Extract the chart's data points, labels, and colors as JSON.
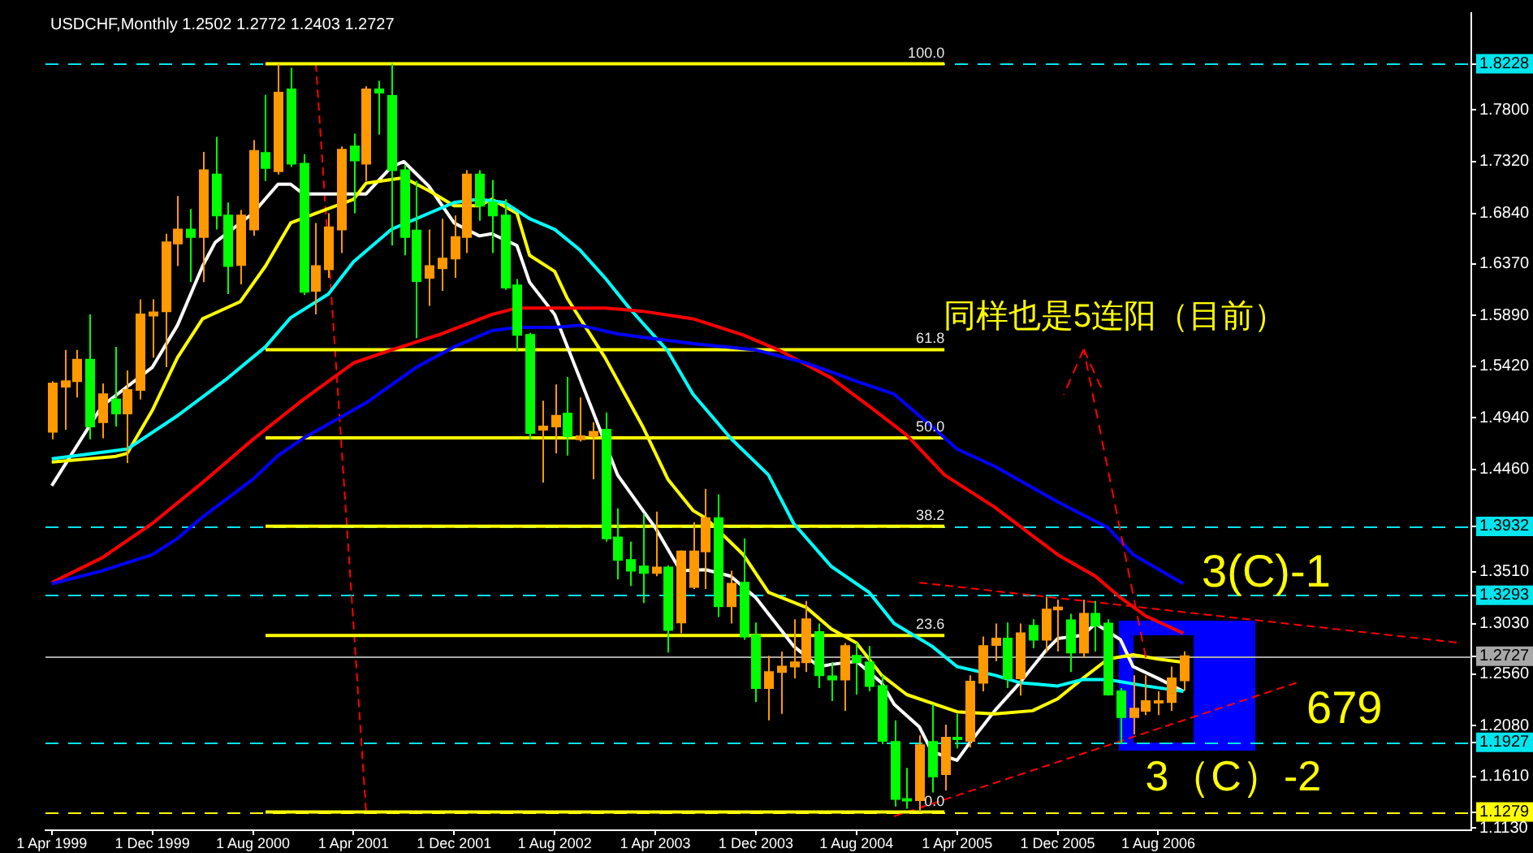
{
  "chart_data": {
    "type": "candlestick",
    "title": "USDCHF,Monthly 1.2502 1.2772 1.2403 1.2727",
    "x": [
      "1999-04",
      "1999-05",
      "1999-06",
      "1999-07",
      "1999-08",
      "1999-09",
      "1999-10",
      "1999-11",
      "1999-12",
      "2000-01",
      "2000-02",
      "2000-03",
      "2000-04",
      "2000-05",
      "2000-06",
      "2000-07",
      "2000-08",
      "2000-09",
      "2000-10",
      "2000-11",
      "2000-12",
      "2001-01",
      "2001-02",
      "2001-03",
      "2001-04",
      "2001-05",
      "2001-06",
      "2001-07",
      "2001-08",
      "2001-09",
      "2001-10",
      "2001-11",
      "2001-12",
      "2002-01",
      "2002-02",
      "2002-03",
      "2002-04",
      "2002-05",
      "2002-06",
      "2002-07",
      "2002-08",
      "2002-09",
      "2002-10",
      "2002-11",
      "2002-12",
      "2003-01",
      "2003-02",
      "2003-03",
      "2003-04",
      "2003-05",
      "2003-06",
      "2003-07",
      "2003-08",
      "2003-09",
      "2003-10",
      "2003-11",
      "2003-12",
      "2004-01",
      "2004-02",
      "2004-03",
      "2004-04",
      "2004-05",
      "2004-06",
      "2004-07",
      "2004-08",
      "2004-09",
      "2004-10",
      "2004-11",
      "2004-12",
      "2005-01",
      "2005-02",
      "2005-03",
      "2005-04",
      "2005-05",
      "2005-06",
      "2005-07",
      "2005-08",
      "2005-09",
      "2005-10",
      "2005-11",
      "2005-12",
      "2006-01",
      "2006-02",
      "2006-03",
      "2006-04",
      "2006-05",
      "2006-06",
      "2006-07",
      "2006-08",
      "2006-09",
      "2006-10"
    ],
    "ohlc": [
      [
        1.481,
        1.528,
        1.474,
        1.526
      ],
      [
        1.523,
        1.557,
        1.483,
        1.528
      ],
      [
        1.528,
        1.557,
        1.513,
        1.548
      ],
      [
        1.548,
        1.59,
        1.474,
        1.486
      ],
      [
        1.49,
        1.526,
        1.475,
        1.516
      ],
      [
        1.511,
        1.56,
        1.486,
        1.498
      ],
      [
        1.498,
        1.538,
        1.452,
        1.52
      ],
      [
        1.52,
        1.604,
        1.511,
        1.59
      ],
      [
        1.589,
        1.604,
        1.55,
        1.592
      ],
      [
        1.593,
        1.665,
        1.541,
        1.657
      ],
      [
        1.656,
        1.7,
        1.635,
        1.669
      ],
      [
        1.669,
        1.688,
        1.62,
        1.662
      ],
      [
        1.662,
        1.741,
        1.62,
        1.724
      ],
      [
        1.72,
        1.755,
        1.669,
        1.682
      ],
      [
        1.682,
        1.694,
        1.609,
        1.635
      ],
      [
        1.636,
        1.687,
        1.618,
        1.682
      ],
      [
        1.669,
        1.752,
        1.663,
        1.742
      ],
      [
        1.74,
        1.794,
        1.714,
        1.726
      ],
      [
        1.723,
        1.823,
        1.72,
        1.796
      ],
      [
        1.799,
        1.819,
        1.727,
        1.73
      ],
      [
        1.73,
        1.739,
        1.608,
        1.611
      ],
      [
        1.612,
        1.675,
        1.59,
        1.635
      ],
      [
        1.632,
        1.684,
        1.624,
        1.671
      ],
      [
        1.669,
        1.746,
        1.647,
        1.743
      ],
      [
        1.746,
        1.758,
        1.684,
        1.733
      ],
      [
        1.73,
        1.802,
        1.714,
        1.799
      ],
      [
        1.799,
        1.807,
        1.757,
        1.796
      ],
      [
        1.793,
        1.823,
        1.654,
        1.724
      ],
      [
        1.724,
        1.729,
        1.645,
        1.662
      ],
      [
        1.668,
        1.714,
        1.568,
        1.621
      ],
      [
        1.624,
        1.669,
        1.598,
        1.635
      ],
      [
        1.633,
        1.679,
        1.612,
        1.642
      ],
      [
        1.642,
        1.682,
        1.624,
        1.662
      ],
      [
        1.662,
        1.724,
        1.647,
        1.72
      ],
      [
        1.72,
        1.724,
        1.677,
        1.691
      ],
      [
        1.694,
        1.715,
        1.647,
        1.682
      ],
      [
        1.682,
        1.697,
        1.613,
        1.615
      ],
      [
        1.617,
        1.623,
        1.556,
        1.571
      ],
      [
        1.571,
        1.573,
        1.474,
        1.48
      ],
      [
        1.483,
        1.51,
        1.434,
        1.486
      ],
      [
        1.486,
        1.525,
        1.461,
        1.496
      ],
      [
        1.498,
        1.532,
        1.459,
        1.477
      ],
      [
        1.474,
        1.513,
        1.472,
        1.477
      ],
      [
        1.477,
        1.49,
        1.437,
        1.481
      ],
      [
        1.483,
        1.499,
        1.379,
        1.382
      ],
      [
        1.383,
        1.41,
        1.344,
        1.362
      ],
      [
        1.362,
        1.379,
        1.338,
        1.352
      ],
      [
        1.356,
        1.405,
        1.322,
        1.35
      ],
      [
        1.35,
        1.407,
        1.347,
        1.355
      ],
      [
        1.355,
        1.357,
        1.276,
        1.297
      ],
      [
        1.304,
        1.371,
        1.294,
        1.37
      ],
      [
        1.337,
        1.397,
        1.335,
        1.37
      ],
      [
        1.37,
        1.428,
        1.335,
        1.401
      ],
      [
        1.401,
        1.423,
        1.309,
        1.319
      ],
      [
        1.319,
        1.352,
        1.303,
        1.34
      ],
      [
        1.341,
        1.382,
        1.288,
        1.291
      ],
      [
        1.292,
        1.304,
        1.23,
        1.243
      ],
      [
        1.243,
        1.273,
        1.213,
        1.258
      ],
      [
        1.258,
        1.277,
        1.219,
        1.263
      ],
      [
        1.263,
        1.307,
        1.252,
        1.267
      ],
      [
        1.267,
        1.324,
        1.258,
        1.307
      ],
      [
        1.295,
        1.303,
        1.243,
        1.255
      ],
      [
        1.254,
        1.267,
        1.231,
        1.251
      ],
      [
        1.251,
        1.285,
        1.222,
        1.282
      ],
      [
        1.273,
        1.285,
        1.237,
        1.267
      ],
      [
        1.267,
        1.282,
        1.24,
        1.245
      ],
      [
        1.245,
        1.255,
        1.191,
        1.194
      ],
      [
        1.193,
        1.213,
        1.133,
        1.14
      ],
      [
        1.14,
        1.169,
        1.131,
        1.139
      ],
      [
        1.139,
        1.199,
        1.128,
        1.19
      ],
      [
        1.193,
        1.228,
        1.146,
        1.161
      ],
      [
        1.163,
        1.209,
        1.148,
        1.197
      ],
      [
        1.197,
        1.219,
        1.187,
        1.196
      ],
      [
        1.194,
        1.255,
        1.188,
        1.249
      ],
      [
        1.248,
        1.291,
        1.24,
        1.282
      ],
      [
        1.283,
        1.303,
        1.268,
        1.289
      ],
      [
        1.289,
        1.304,
        1.243,
        1.252
      ],
      [
        1.252,
        1.303,
        1.236,
        1.294
      ],
      [
        1.301,
        1.307,
        1.28,
        1.288
      ],
      [
        1.288,
        1.328,
        1.276,
        1.316
      ],
      [
        1.316,
        1.325,
        1.277,
        1.318
      ],
      [
        1.306,
        1.312,
        1.258,
        1.276
      ],
      [
        1.276,
        1.325,
        1.271,
        1.312
      ],
      [
        1.312,
        1.324,
        1.277,
        1.301
      ],
      [
        1.303,
        1.307,
        1.236,
        1.237
      ],
      [
        1.24,
        1.243,
        1.191,
        1.216
      ],
      [
        1.216,
        1.255,
        1.2,
        1.224
      ],
      [
        1.222,
        1.255,
        1.218,
        1.231
      ],
      [
        1.23,
        1.24,
        1.218,
        1.231
      ],
      [
        1.23,
        1.263,
        1.222,
        1.252
      ],
      [
        1.2502,
        1.2772,
        1.2403,
        1.2727
      ]
    ],
    "colors": [
      "#ff9900",
      "#ff9900",
      "#ff9900",
      "#00ff00",
      "#ff9900",
      "#00ff00",
      "#ff9900",
      "#ff9900",
      "#ff9900",
      "#ff9900",
      "#ff9900",
      "#00ff00",
      "#ff9900",
      "#00ff00",
      "#00ff00",
      "#ff9900",
      "#ff9900",
      "#00ff00",
      "#ff9900",
      "#00ff00",
      "#00ff00",
      "#ff9900",
      "#ff9900",
      "#ff9900",
      "#00ff00",
      "#ff9900",
      "#00ff00",
      "#00ff00",
      "#00ff00",
      "#00ff00",
      "#ff9900",
      "#ff9900",
      "#ff9900",
      "#ff9900",
      "#00ff00",
      "#00ff00",
      "#00ff00",
      "#00ff00",
      "#00ff00",
      "#ff9900",
      "#ff9900",
      "#00ff00",
      "#ff9900",
      "#ff9900",
      "#00ff00",
      "#00ff00",
      "#00ff00",
      "#00ff00",
      "#ff9900",
      "#00ff00",
      "#ff9900",
      "#ff9900",
      "#ff9900",
      "#00ff00",
      "#ff9900",
      "#00ff00",
      "#00ff00",
      "#ff9900",
      "#ff9900",
      "#ff9900",
      "#ff9900",
      "#00ff00",
      "#00ff00",
      "#ff9900",
      "#00ff00",
      "#00ff00",
      "#00ff00",
      "#00ff00",
      "#00ff00",
      "#ff9900",
      "#00ff00",
      "#ff9900",
      "#00ff00",
      "#ff9900",
      "#ff9900",
      "#ff9900",
      "#00ff00",
      "#ff9900",
      "#00ff00",
      "#ff9900",
      "#ff9900",
      "#00ff00",
      "#ff9900",
      "#00ff00",
      "#00ff00",
      "#00ff00",
      "#ff9900",
      "#ff9900",
      "#ff9900",
      "#ff9900",
      "#ff9900"
    ],
    "series": [
      {
        "type": "line",
        "color": "#0000ff",
        "x": [
          "1999-04",
          "1999-08",
          "1999-12",
          "2000-02",
          "2000-04",
          "2000-08",
          "2000-10",
          "2000-12",
          "2001-05",
          "2001-09",
          "2001-12",
          "2002-03",
          "2002-05",
          "2002-08",
          "2002-10",
          "2003-01",
          "2003-07",
          "2003-12",
          "2004-04",
          "2004-08",
          "2004-11",
          "2005-02",
          "2005-04",
          "2005-07",
          "2005-12",
          "2006-04",
          "2006-06",
          "2006-10"
        ],
        "values": [
          1.34,
          1.352,
          1.367,
          1.382,
          1.402,
          1.437,
          1.459,
          1.475,
          1.508,
          1.541,
          1.56,
          1.575,
          1.578,
          1.578,
          1.58,
          1.572,
          1.563,
          1.557,
          1.545,
          1.528,
          1.516,
          1.486,
          1.465,
          1.449,
          1.416,
          1.392,
          1.367,
          1.34
        ]
      },
      {
        "type": "line",
        "color": "#ff0000",
        "x": [
          "1999-04",
          "1999-08",
          "1999-12",
          "2000-04",
          "2000-08",
          "2000-12",
          "2001-04",
          "2001-07",
          "2001-11",
          "2002-03",
          "2002-05",
          "2002-08",
          "2002-12",
          "2003-03",
          "2003-07",
          "2003-11",
          "2004-02",
          "2004-06",
          "2004-09",
          "2004-12",
          "2005-03",
          "2005-07",
          "2005-12",
          "2006-03",
          "2006-05",
          "2006-07",
          "2006-10"
        ],
        "values": [
          1.341,
          1.364,
          1.396,
          1.434,
          1.474,
          1.511,
          1.545,
          1.557,
          1.572,
          1.59,
          1.596,
          1.596,
          1.596,
          1.593,
          1.586,
          1.571,
          1.556,
          1.531,
          1.505,
          1.478,
          1.441,
          1.411,
          1.367,
          1.347,
          1.327,
          1.31,
          1.294
        ]
      },
      {
        "type": "line",
        "color": "#00ffff",
        "x": [
          "1999-04",
          "1999-10",
          "2000-02",
          "2000-06",
          "2000-09",
          "2000-11",
          "2001-02",
          "2001-04",
          "2001-07",
          "2001-10",
          "2001-12",
          "2002-02",
          "2002-04",
          "2002-06",
          "2002-08",
          "2002-10",
          "2002-12",
          "2003-02",
          "2003-05",
          "2003-07",
          "2003-10",
          "2004-01",
          "2004-03",
          "2004-06",
          "2004-09",
          "2004-11",
          "2005-02",
          "2005-04",
          "2005-07",
          "2005-09",
          "2005-12",
          "2006-02",
          "2006-04",
          "2006-07",
          "2006-10"
        ],
        "values": [
          1.456,
          1.465,
          1.496,
          1.531,
          1.56,
          1.587,
          1.609,
          1.639,
          1.669,
          1.684,
          1.694,
          1.697,
          1.694,
          1.679,
          1.669,
          1.65,
          1.624,
          1.595,
          1.556,
          1.516,
          1.475,
          1.441,
          1.396,
          1.356,
          1.332,
          1.303,
          1.282,
          1.263,
          1.255,
          1.248,
          1.245,
          1.251,
          1.251,
          1.245,
          1.24
        ]
      },
      {
        "type": "line",
        "color": "#ffff00",
        "x": [
          "1999-04",
          "1999-09",
          "1999-10",
          "1999-12",
          "2000-02",
          "2000-04",
          "2000-07",
          "2000-09",
          "2000-11",
          "2001-01",
          "2001-04",
          "2001-05",
          "2001-08",
          "2001-10",
          "2001-12",
          "2002-02",
          "2002-03",
          "2002-05",
          "2002-06",
          "2002-08",
          "2002-09",
          "2002-12",
          "2003-03",
          "2003-05",
          "2003-07",
          "2003-08",
          "2003-11",
          "2004-01",
          "2004-04",
          "2004-06",
          "2004-08",
          "2004-10",
          "2004-12",
          "2005-04",
          "2005-07",
          "2005-10",
          "2005-12",
          "2006-02",
          "2006-04",
          "2006-06",
          "2006-08",
          "2006-10"
        ],
        "values": [
          1.453,
          1.458,
          1.461,
          1.501,
          1.55,
          1.586,
          1.602,
          1.635,
          1.675,
          1.684,
          1.697,
          1.712,
          1.717,
          1.705,
          1.691,
          1.691,
          1.697,
          1.684,
          1.645,
          1.63,
          1.605,
          1.55,
          1.486,
          1.437,
          1.408,
          1.401,
          1.367,
          1.332,
          1.318,
          1.298,
          1.285,
          1.255,
          1.237,
          1.221,
          1.219,
          1.222,
          1.233,
          1.252,
          1.27,
          1.274,
          1.27,
          1.267
        ]
      },
      {
        "type": "line",
        "color": "#ffffff",
        "x": [
          "1999-04",
          "1999-08",
          "1999-12",
          "2000-02",
          "2000-04",
          "2000-05",
          "2000-08",
          "2000-10",
          "2000-11",
          "2000-12",
          "2001-05",
          "2001-07",
          "2001-08",
          "2001-10",
          "2001-12",
          "2002-02",
          "2002-03",
          "2002-05",
          "2002-06",
          "2002-08",
          "2002-11",
          "2003-01",
          "2003-04",
          "2003-06",
          "2003-08",
          "2003-10",
          "2003-12",
          "2004-03",
          "2004-05",
          "2004-06",
          "2004-08",
          "2004-10",
          "2004-11",
          "2005-01",
          "2005-02",
          "2005-04",
          "2005-05",
          "2005-07",
          "2005-09",
          "2005-11",
          "2005-12",
          "2006-02",
          "2006-03",
          "2006-05",
          "2006-06",
          "2006-08",
          "2006-10"
        ],
        "values": [
          1.431,
          1.505,
          1.541,
          1.58,
          1.635,
          1.657,
          1.684,
          1.711,
          1.711,
          1.702,
          1.702,
          1.727,
          1.732,
          1.709,
          1.675,
          1.663,
          1.665,
          1.654,
          1.62,
          1.59,
          1.501,
          1.441,
          1.392,
          1.352,
          1.353,
          1.347,
          1.327,
          1.282,
          1.263,
          1.265,
          1.268,
          1.248,
          1.228,
          1.207,
          1.184,
          1.176,
          1.192,
          1.222,
          1.248,
          1.277,
          1.289,
          1.292,
          1.303,
          1.288,
          1.263,
          1.252,
          1.24
        ]
      },
      {
        "type": "line",
        "color": "#ffff00",
        "x": [
          "2000-09",
          "2005-03"
        ],
        "values": [
          1.8228,
          1.8228
        ]
      },
      {
        "type": "line",
        "color": "#ffff00",
        "x": [
          "2000-09",
          "2005-03"
        ],
        "values": [
          1.5573,
          1.5573
        ]
      },
      {
        "type": "line",
        "color": "#ffff00",
        "x": [
          "2000-09",
          "2005-03"
        ],
        "values": [
          1.4754,
          1.4754
        ]
      },
      {
        "type": "line",
        "color": "#ffff00",
        "x": [
          "2000-09",
          "2005-03"
        ],
        "values": [
          1.3933,
          1.3933
        ]
      },
      {
        "type": "line",
        "color": "#ffff00",
        "x": [
          "2000-09",
          "2005-03"
        ],
        "values": [
          1.2919,
          1.2919
        ]
      },
      {
        "type": "line",
        "color": "#ffff00",
        "x": [
          "2000-09",
          "2005-03"
        ],
        "values": [
          1.1279,
          1.1279
        ]
      },
      {
        "type": "line",
        "color": "#ff0000",
        "line_style": "dashed",
        "x": [
          "2001-01",
          "2001-05"
        ],
        "values": [
          1.823,
          1.128
        ]
      },
      {
        "type": "line",
        "color": "#ff0000",
        "line_style": "dashed",
        "x": [
          "2005-01",
          "2008-08"
        ],
        "values": [
          1.341,
          1.285
        ]
      },
      {
        "type": "line",
        "color": "#ff0000",
        "line_style": "dashed",
        "x": [
          "2004-11",
          "2007-07"
        ],
        "values": [
          1.124,
          1.248
        ]
      }
    ],
    "xlim": [
      "1999-03-16",
      "2008-08-28"
    ],
    "xticks": [
      {
        "value": "1999-04",
        "label": "1 Apr 1999"
      },
      {
        "value": "1999-12",
        "label": "1 Dec 1999"
      },
      {
        "value": "2000-08",
        "label": "1 Aug 2000"
      },
      {
        "value": "2001-04",
        "label": "1 Apr 2001"
      },
      {
        "value": "2001-12",
        "label": "1 Dec 2001"
      },
      {
        "value": "2002-08",
        "label": "1 Aug 2002"
      },
      {
        "value": "2003-04",
        "label": "1 Apr 2003"
      },
      {
        "value": "2003-12",
        "label": "1 Dec 2003"
      },
      {
        "value": "2004-08",
        "label": "1 Aug 2004"
      },
      {
        "value": "2005-04",
        "label": "1 Apr 2005"
      },
      {
        "value": "2005-12",
        "label": "1 Dec 2005"
      },
      {
        "value": "2006-08",
        "label": "1 Aug 2006"
      }
    ],
    "ylim": [
      1.111,
      1.87
    ],
    "yticks": [
      1.8228,
      {
        "value": 1.78,
        "label": "1.7800"
      },
      {
        "value": 1.732,
        "label": "1.7320"
      },
      {
        "value": 1.684,
        "label": "1.6840"
      },
      {
        "value": 1.637,
        "label": "1.6370"
      },
      {
        "value": 1.589,
        "label": "1.5890"
      },
      {
        "value": 1.542,
        "label": "1.5420"
      },
      {
        "value": 1.494,
        "label": "1.4940"
      },
      {
        "value": 1.446,
        "label": "1.4460"
      },
      1.3932,
      {
        "value": 1.351,
        "label": "1.3510"
      },
      1.3293,
      {
        "value": 1.303,
        "label": "1.3030"
      },
      1.2727,
      {
        "value": 1.256,
        "label": "1.2560"
      },
      {
        "value": 1.208,
        "label": "1.2080"
      },
      1.1927,
      {
        "value": 1.161,
        "label": "1.1610"
      },
      1.1279,
      {
        "value": 1.113,
        "label": "1.1130"
      }
    ],
    "ref_lines": [
      {
        "axis": "y",
        "value": 1.8228,
        "color": "#00e5ee",
        "line_style": "dashed"
      },
      {
        "axis": "y",
        "value": 1.3932,
        "color": "#00e5ee",
        "line_style": "dashed"
      },
      {
        "axis": "y",
        "value": 1.3293,
        "color": "#00e5ee",
        "line_style": "dashed"
      },
      {
        "axis": "y",
        "value": 1.1927,
        "color": "#00e5ee",
        "line_style": "dashed"
      },
      {
        "axis": "y",
        "value": 1.1279,
        "color": "#ffff00",
        "line_style": "dashed"
      },
      {
        "axis": "y",
        "value": 1.2727,
        "color": "#a8a8a8",
        "line_style": "solid"
      }
    ],
    "annotations": [
      {
        "text": "同样也是5连阳（目前）",
        "x": "2006-07",
        "y": 1.27
      },
      "3(C)-1",
      "679",
      "3（C）-2",
      {
        "text": "100.0",
        "x": "2005-03",
        "y": 1.8228
      },
      {
        "text": "61.8",
        "x": "2005-03",
        "y": 1.5573
      },
      {
        "text": "50.0",
        "x": "2005-03",
        "y": 1.4754
      },
      {
        "text": "38.2",
        "x": "2005-03",
        "y": 1.3933
      },
      {
        "text": "23.6",
        "x": "2005-03",
        "y": 1.2919
      },
      {
        "text": "0.0",
        "x": "2005-03",
        "y": 1.1279
      }
    ]
  }
}
